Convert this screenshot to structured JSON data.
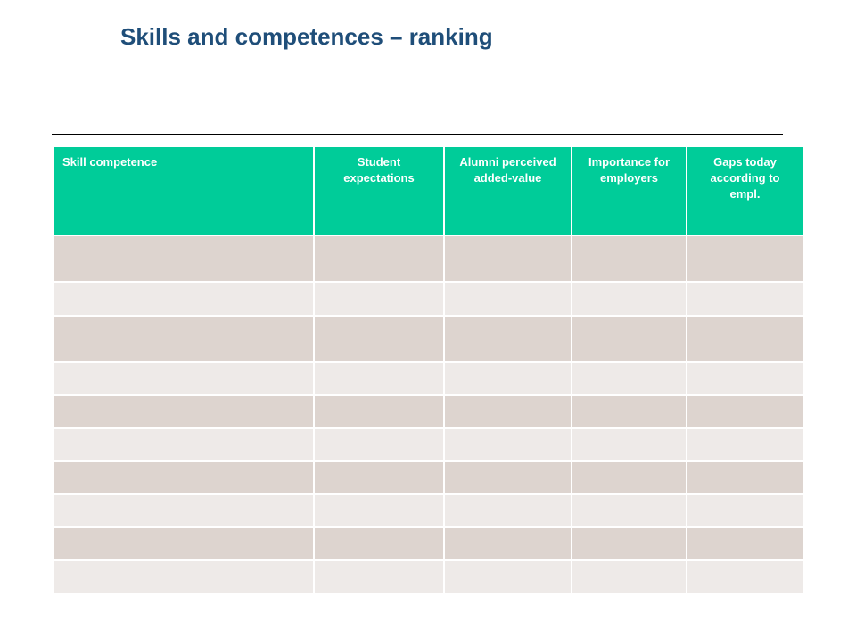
{
  "title": "Skills and competences – ranking",
  "table": {
    "headers": [
      "Skill competence",
      "Student expectations",
      "Alumni perceived added-value",
      "Importance for employers",
      "Gaps today according to empl."
    ],
    "rows": [
      [
        "",
        "",
        "",
        "",
        ""
      ],
      [
        "",
        "",
        "",
        "",
        ""
      ],
      [
        "",
        "",
        "",
        "",
        ""
      ],
      [
        "",
        "",
        "",
        "",
        ""
      ],
      [
        "",
        "",
        "",
        "",
        ""
      ],
      [
        "",
        "",
        "",
        "",
        ""
      ],
      [
        "",
        "",
        "",
        "",
        ""
      ],
      [
        "",
        "",
        "",
        "",
        ""
      ],
      [
        "",
        "",
        "",
        "",
        ""
      ],
      [
        "",
        "",
        "",
        "",
        ""
      ]
    ]
  },
  "colors": {
    "title": "#1f4e79",
    "header_bg": "#00cc99",
    "row_dark": "#ddd4cf",
    "row_light": "#eeeae8"
  }
}
